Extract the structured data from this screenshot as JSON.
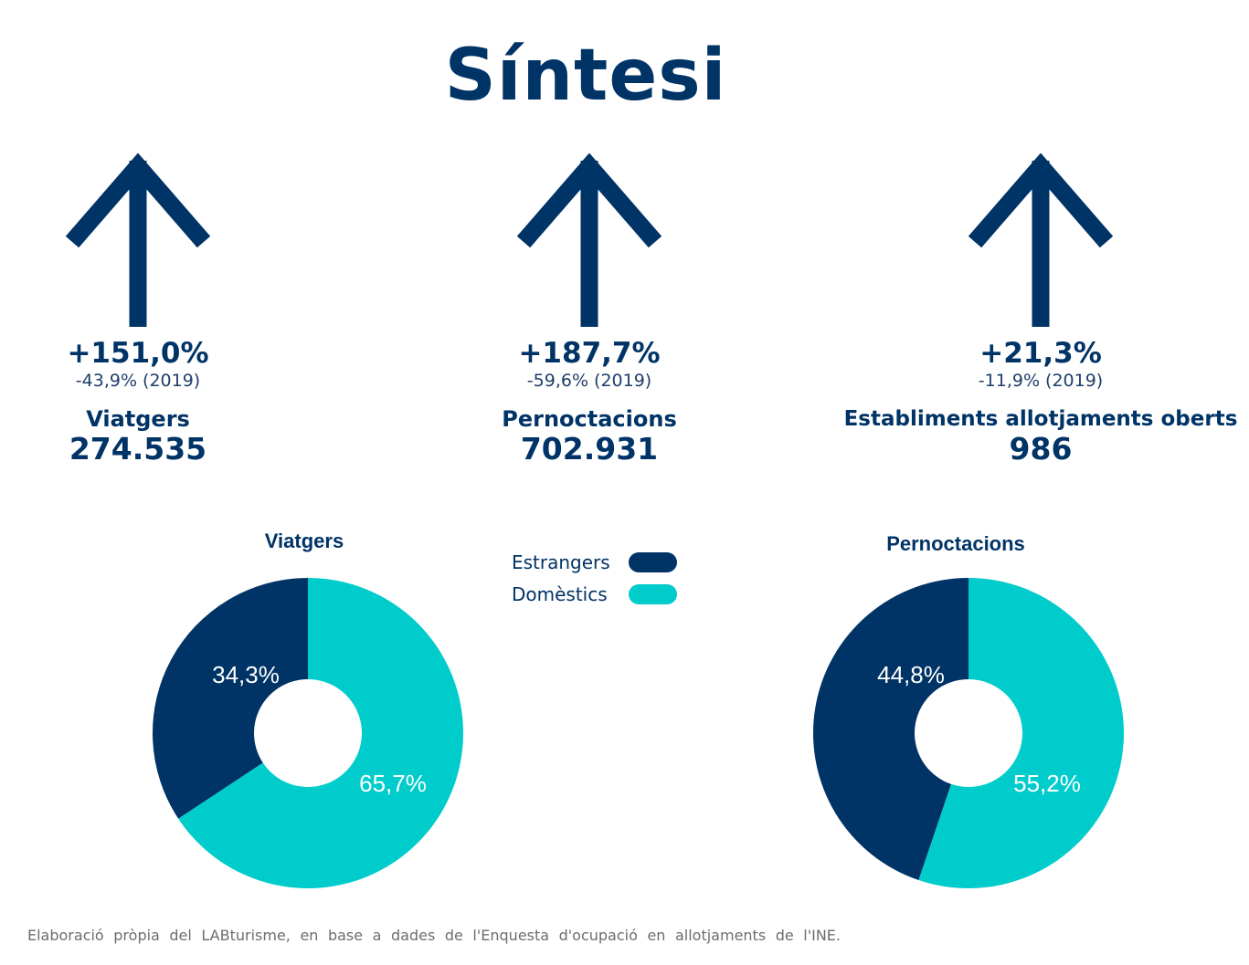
{
  "title": "Síntesi",
  "colors": {
    "estrangers": "#003366",
    "domestics": "#00cccc",
    "text": "#003366"
  },
  "kpis": [
    {
      "pct": "+151,0%",
      "prev": "-43,9% (2019)",
      "label": "Viatgers",
      "value": "274.535",
      "icon": "arrow-up-icon"
    },
    {
      "pct": "+187,7%",
      "prev": "-59,6% (2019)",
      "label": "Pernoctacions",
      "value": "702.931",
      "icon": "arrow-up-icon"
    },
    {
      "pct": "+21,3%",
      "prev": "-11,9% (2019)",
      "label": "Establiments allotjaments oberts",
      "value": "986",
      "icon": "arrow-up-icon"
    }
  ],
  "legend": [
    {
      "label": "Estrangers",
      "color": "#003366"
    },
    {
      "label": "Domèstics",
      "color": "#00cccc"
    }
  ],
  "chart_data": [
    {
      "type": "pie",
      "title": "Viatgers",
      "categories": [
        "Estrangers",
        "Domèstics"
      ],
      "values": [
        34.3,
        65.7
      ],
      "data_labels": [
        "34,3%",
        "65,7%"
      ]
    },
    {
      "type": "pie",
      "title": "Pernoctacions",
      "categories": [
        "Estrangers",
        "Domèstics"
      ],
      "values": [
        44.8,
        55.2
      ],
      "data_labels": [
        "44,8%",
        "55,2%"
      ]
    }
  ],
  "footnote": "Elaboració pròpia del LABturisme, en base a dades de l'Enquesta d'ocupació en allotjaments de l'INE."
}
